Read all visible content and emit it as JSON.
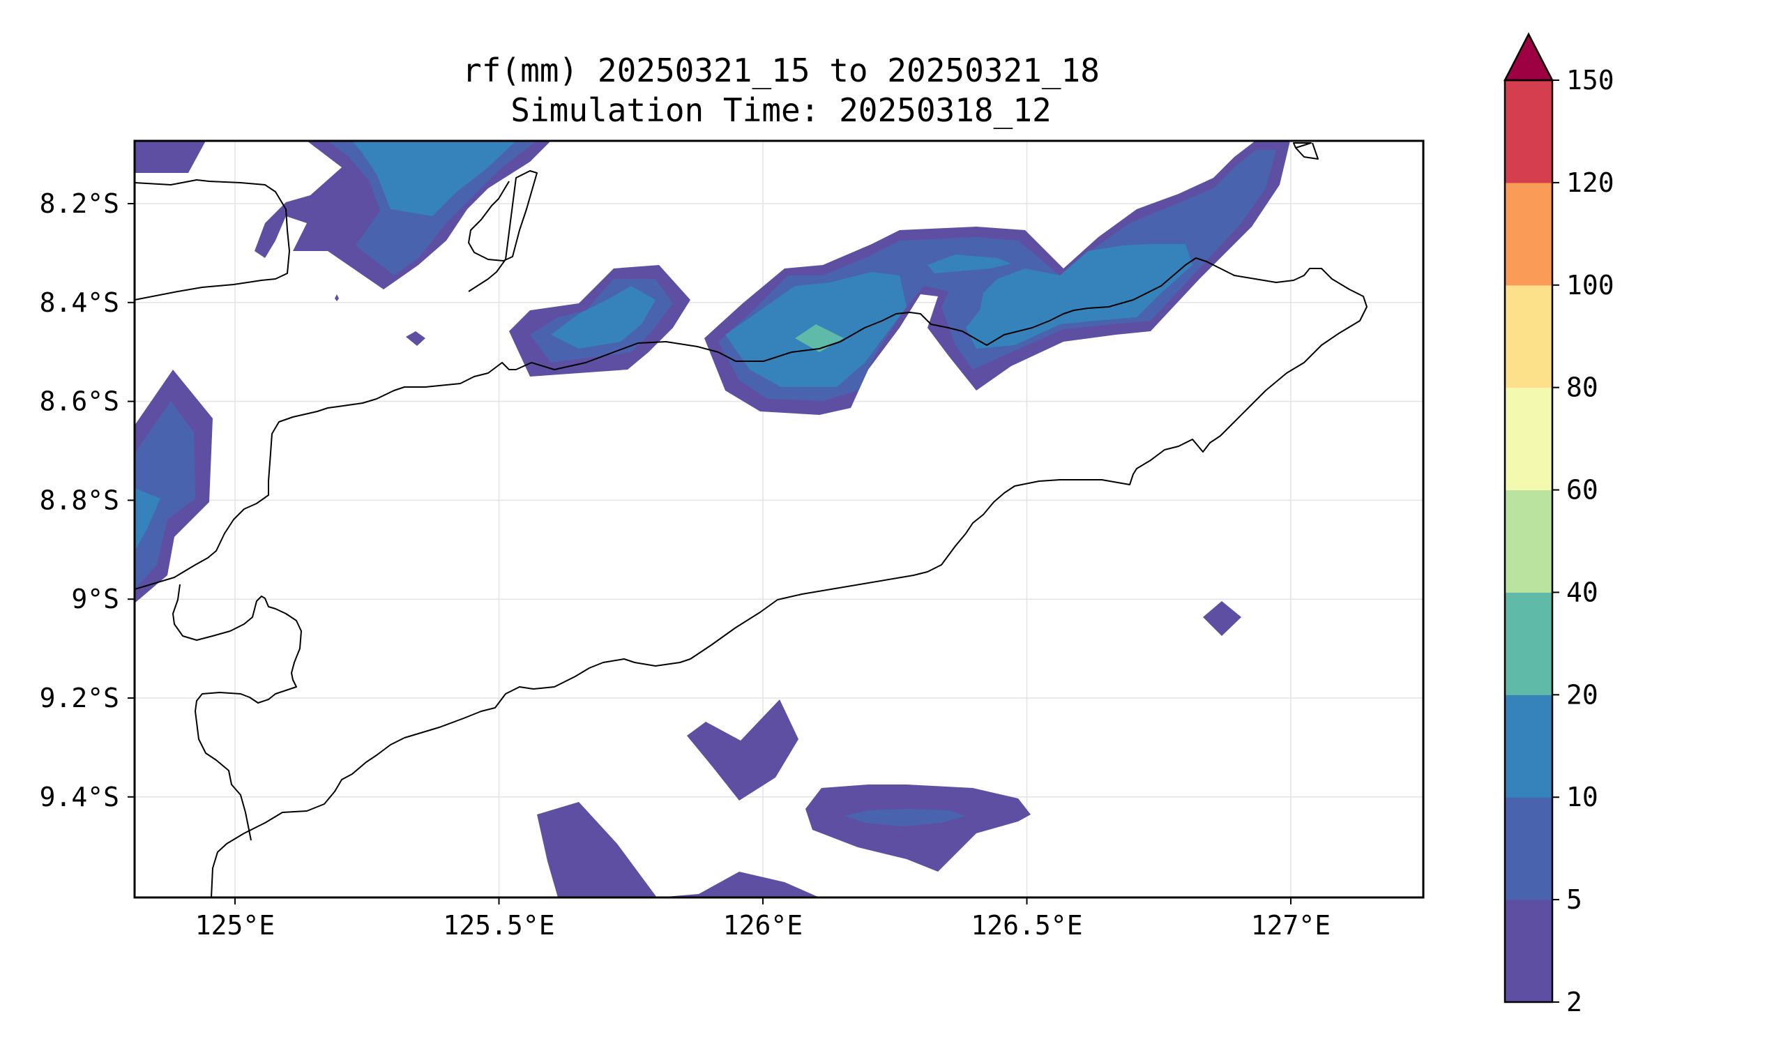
{
  "figure": {
    "title_line1": "rf(mm) 20250321_15 to 20250321_18",
    "title_line2": "Simulation Time: 20250318_12"
  },
  "map": {
    "lon_ticks": [
      {
        "value": 125.0,
        "label": "125°E"
      },
      {
        "value": 125.5,
        "label": "125.5°E"
      },
      {
        "value": 126.0,
        "label": "126°E"
      },
      {
        "value": 126.5,
        "label": "126.5°E"
      },
      {
        "value": 127.0,
        "label": "127°E"
      }
    ],
    "lat_ticks": [
      {
        "value": -8.2,
        "label": "8.2°S"
      },
      {
        "value": -8.4,
        "label": "8.4°S"
      },
      {
        "value": -8.6,
        "label": "8.6°S"
      },
      {
        "value": -8.8,
        "label": "8.8°S"
      },
      {
        "value": -9.0,
        "label": "9°S"
      },
      {
        "value": -9.2,
        "label": "9.2°S"
      },
      {
        "value": -9.4,
        "label": "9.4°S"
      }
    ],
    "grid": true
  },
  "colorbar": {
    "extend": "max",
    "levels": [
      {
        "value": 2,
        "label": "2"
      },
      {
        "value": 5,
        "label": "5"
      },
      {
        "value": 10,
        "label": "10"
      },
      {
        "value": 20,
        "label": "20"
      },
      {
        "value": 40,
        "label": "40"
      },
      {
        "value": 60,
        "label": "60"
      },
      {
        "value": 80,
        "label": "80"
      },
      {
        "value": 100,
        "label": "100"
      },
      {
        "value": 120,
        "label": "120"
      },
      {
        "value": 150,
        "label": "150"
      }
    ],
    "colors": [
      "#5e4fa2",
      "#4a63ae",
      "#3682ba",
      "#5fbaa8",
      "#bbe3a0",
      "#f4f9b0",
      "#fce08a",
      "#fa9b58",
      "#d53e4f"
    ],
    "over_color": "#9e0142"
  }
}
